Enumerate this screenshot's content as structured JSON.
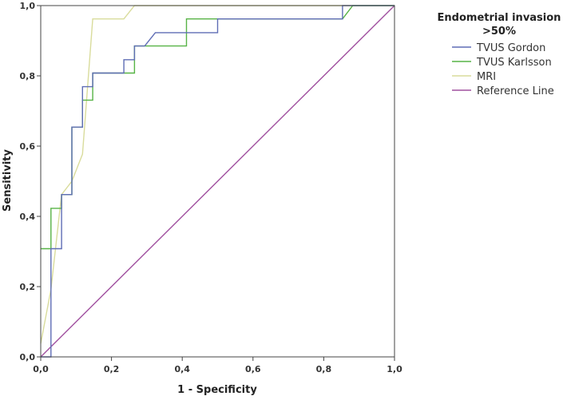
{
  "chart_data": {
    "type": "line",
    "title": "",
    "xlabel": "1 - Specificity",
    "ylabel": "Sensitivity",
    "xlim": [
      0,
      1
    ],
    "ylim": [
      0,
      1
    ],
    "x_ticks": [
      "0,0",
      "0,2",
      "0,4",
      "0,6",
      "0,8",
      "1,0"
    ],
    "y_ticks": [
      "0,0",
      "0,2",
      "0,4",
      "0,6",
      "0,8",
      "1,0"
    ],
    "grid": false,
    "legend": {
      "title_line1": "Endometrial invasion",
      "title_line2": ">50%",
      "placement": "right"
    },
    "series": [
      {
        "name": "TVUS Gordon",
        "color": "#5f6db5",
        "points": [
          [
            0,
            0
          ],
          [
            0.029,
            0
          ],
          [
            0.029,
            0.308
          ],
          [
            0.059,
            0.308
          ],
          [
            0.059,
            0.462
          ],
          [
            0.088,
            0.462
          ],
          [
            0.088,
            0.654
          ],
          [
            0.118,
            0.654
          ],
          [
            0.118,
            0.769
          ],
          [
            0.147,
            0.769
          ],
          [
            0.147,
            0.808
          ],
          [
            0.235,
            0.808
          ],
          [
            0.235,
            0.846
          ],
          [
            0.265,
            0.846
          ],
          [
            0.265,
            0.885
          ],
          [
            0.294,
            0.885
          ],
          [
            0.324,
            0.923
          ],
          [
            0.5,
            0.923
          ],
          [
            0.5,
            0.962
          ],
          [
            0.853,
            0.962
          ],
          [
            0.853,
            1
          ],
          [
            1,
            1
          ]
        ]
      },
      {
        "name": "TVUS Karlsson",
        "color": "#57b346",
        "points": [
          [
            0,
            0.308
          ],
          [
            0.029,
            0.308
          ],
          [
            0.029,
            0.423
          ],
          [
            0.059,
            0.423
          ],
          [
            0.059,
            0.462
          ],
          [
            0.088,
            0.462
          ],
          [
            0.088,
            0.654
          ],
          [
            0.118,
            0.654
          ],
          [
            0.118,
            0.731
          ],
          [
            0.147,
            0.731
          ],
          [
            0.147,
            0.808
          ],
          [
            0.265,
            0.808
          ],
          [
            0.265,
            0.885
          ],
          [
            0.412,
            0.885
          ],
          [
            0.412,
            0.962
          ],
          [
            0.853,
            0.962
          ],
          [
            0.882,
            1
          ],
          [
            1,
            1
          ]
        ]
      },
      {
        "name": "MRI",
        "color": "#d9dc9c",
        "points": [
          [
            0,
            0.038
          ],
          [
            0.029,
            0.192
          ],
          [
            0.059,
            0.462
          ],
          [
            0.088,
            0.5
          ],
          [
            0.118,
            0.577
          ],
          [
            0.147,
            0.962
          ],
          [
            0.235,
            0.962
          ],
          [
            0.265,
            1
          ],
          [
            1,
            1
          ]
        ]
      },
      {
        "name": "Reference Line",
        "color": "#a0509f",
        "points": [
          [
            0,
            0
          ],
          [
            1,
            1
          ]
        ]
      }
    ]
  }
}
